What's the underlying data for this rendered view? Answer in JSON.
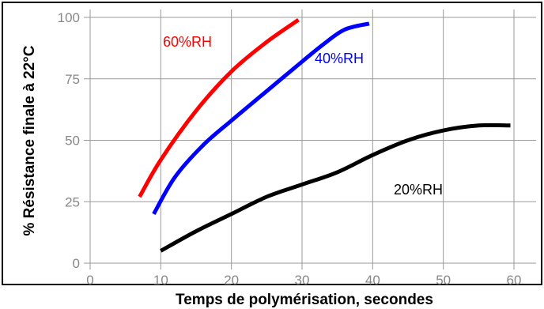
{
  "chart_data": {
    "type": "line",
    "xlabel": "Temps de polymérisation, secondes",
    "ylabel": "% Résistance finale à 22°C",
    "xlim": [
      0,
      60
    ],
    "ylim": [
      0,
      100
    ],
    "x_ticks": [
      "0",
      "10",
      "20",
      "30",
      "40",
      "50",
      "60"
    ],
    "y_ticks": [
      "0",
      "25",
      "50",
      "75",
      "100"
    ],
    "grid": true,
    "series": [
      {
        "name": "60%RH",
        "color": "#ff0000",
        "points": [
          [
            7,
            27
          ],
          [
            10,
            42
          ],
          [
            15,
            62
          ],
          [
            20,
            78
          ],
          [
            25,
            90
          ],
          [
            29.5,
            99
          ]
        ]
      },
      {
        "name": "40%RH",
        "color": "#0000ff",
        "points": [
          [
            9,
            20
          ],
          [
            12,
            35
          ],
          [
            16,
            48
          ],
          [
            20,
            58
          ],
          [
            25,
            70
          ],
          [
            30,
            82
          ],
          [
            33,
            89
          ],
          [
            36,
            95
          ],
          [
            39.5,
            97.5
          ]
        ]
      },
      {
        "name": "20%RH",
        "color": "#000000",
        "points": [
          [
            10,
            5
          ],
          [
            15,
            13
          ],
          [
            20,
            20
          ],
          [
            25,
            27
          ],
          [
            30,
            32
          ],
          [
            35,
            37
          ],
          [
            40,
            44
          ],
          [
            45,
            50
          ],
          [
            50,
            54
          ],
          [
            55,
            56
          ],
          [
            59.5,
            56
          ]
        ]
      }
    ]
  }
}
